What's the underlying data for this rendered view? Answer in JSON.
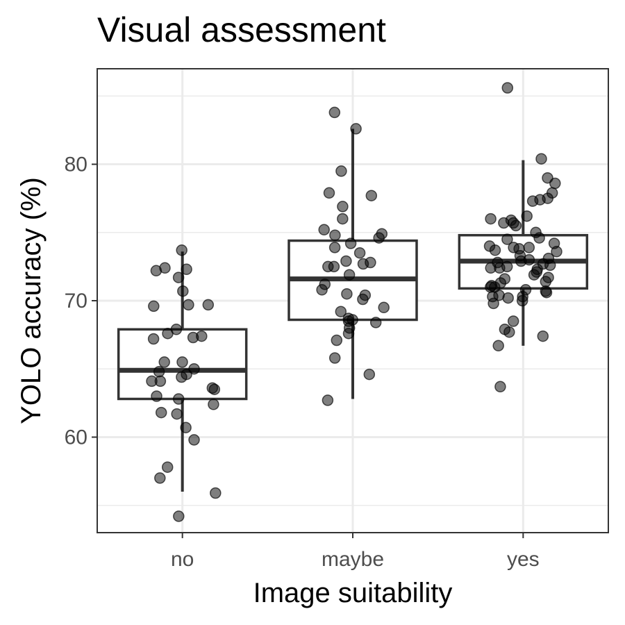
{
  "chart_data": {
    "type": "boxplot",
    "title": "Visual assessment",
    "xlabel": "Image suitability",
    "ylabel": "YOLO accuracy (%)",
    "categories": [
      "no",
      "maybe",
      "yes"
    ],
    "ylim": [
      53,
      87
    ],
    "yticks": [
      60,
      70,
      80
    ],
    "grid": true,
    "jitter_points": true,
    "boxes": [
      {
        "category": "no",
        "min": 56.0,
        "q1": 62.8,
        "median": 64.9,
        "q3": 67.9,
        "max": 73.6
      },
      {
        "category": "maybe",
        "min": 62.8,
        "q1": 68.6,
        "median": 71.6,
        "q3": 74.4,
        "max": 82.6
      },
      {
        "category": "yes",
        "min": 66.7,
        "q1": 70.9,
        "median": 72.9,
        "q3": 74.8,
        "max": 80.3
      }
    ],
    "points": [
      {
        "category": "no",
        "values": [
          73.7,
          72.3,
          72.2,
          72.4,
          71.7,
          70.7,
          69.6,
          69.7,
          69.7,
          67.9,
          67.6,
          67.4,
          67.3,
          67.2,
          65.5,
          65.5,
          65.0,
          64.8,
          64.6,
          64.4,
          64.1,
          64.1,
          63.6,
          63.5,
          63.0,
          62.8,
          62.4,
          61.8,
          61.7,
          60.7,
          59.8,
          57.8,
          57.0,
          55.9,
          54.2
        ]
      },
      {
        "category": "maybe",
        "values": [
          83.8,
          82.6,
          79.5,
          77.9,
          77.7,
          76.9,
          76.0,
          75.2,
          74.9,
          74.8,
          74.6,
          74.2,
          73.9,
          73.5,
          72.9,
          72.8,
          72.7,
          72.5,
          72.5,
          71.9,
          71.2,
          70.8,
          70.5,
          70.4,
          70.1,
          69.5,
          69.2,
          68.7,
          68.6,
          68.5,
          68.4,
          68.0,
          67.6,
          67.1,
          65.8,
          64.6,
          62.7
        ]
      },
      {
        "category": "yes",
        "values": [
          85.6,
          80.4,
          79.0,
          78.6,
          77.9,
          77.5,
          77.4,
          77.3,
          76.2,
          76.0,
          75.9,
          75.7,
          75.7,
          75.5,
          75.0,
          74.6,
          74.5,
          74.2,
          74.0,
          73.9,
          73.9,
          73.8,
          73.7,
          73.6,
          73.3,
          73.1,
          73.0,
          72.9,
          72.8,
          72.7,
          72.6,
          72.5,
          72.4,
          72.4,
          72.3,
          72.1,
          71.9,
          71.7,
          71.6,
          71.4,
          71.3,
          71.1,
          71.0,
          71.0,
          70.8,
          70.7,
          70.6,
          70.4,
          70.3,
          70.3,
          70.2,
          70.0,
          69.8,
          68.5,
          67.9,
          67.7,
          67.4,
          66.7,
          63.7
        ]
      }
    ]
  }
}
